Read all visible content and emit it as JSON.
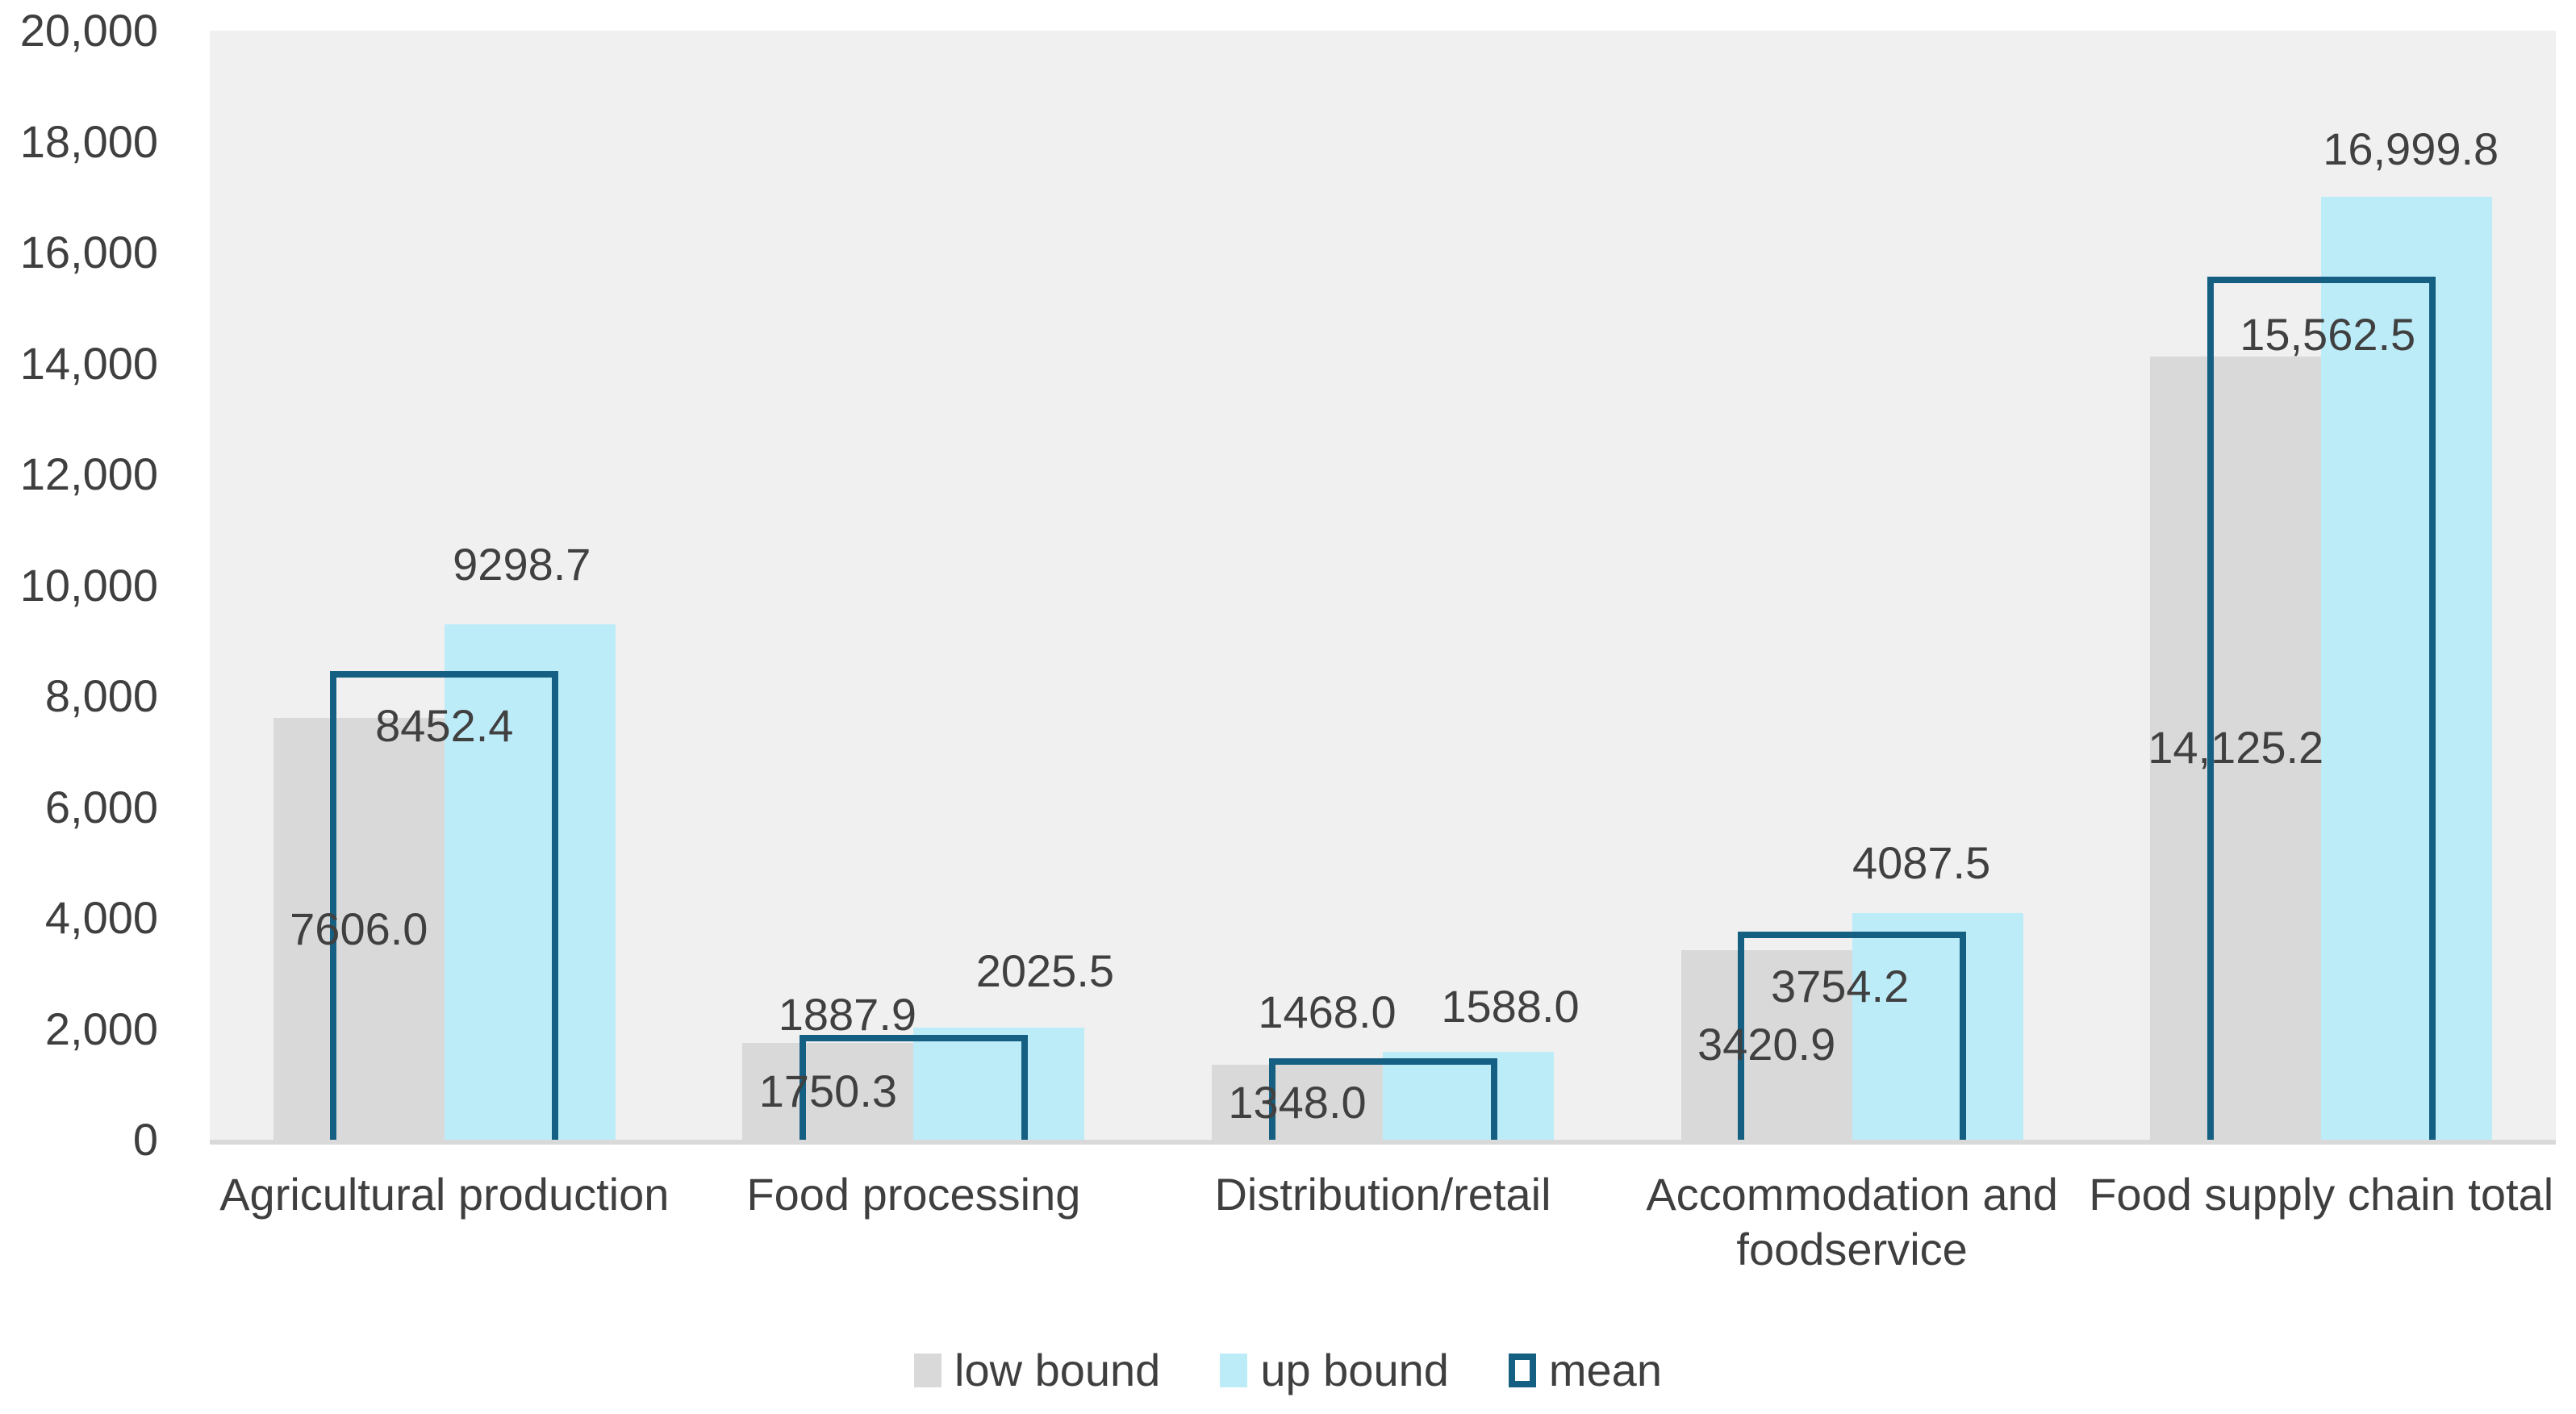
{
  "chart_data": {
    "type": "bar",
    "title": "",
    "xlabel": "",
    "ylabel": "",
    "categories": [
      "Agricultural production",
      "Food processing",
      "Distribution/retail",
      "Accommodation and foodservice",
      "Food supply chain total"
    ],
    "series": [
      {
        "name": "low bound",
        "style": "fill",
        "color": "#d9d9d9",
        "values": [
          7606.0,
          1750.3,
          1348.0,
          3420.9,
          14125.2
        ],
        "labels": [
          "7606.0",
          "1750.3",
          "1348.0",
          "3420.9",
          "14,125.2"
        ]
      },
      {
        "name": "up bound",
        "style": "fill",
        "color": "#bdecf9",
        "values": [
          9298.7,
          2025.5,
          1588.0,
          4087.5,
          16999.8
        ],
        "labels": [
          "9298.7",
          "2025.5",
          "1588.0",
          "4087.5",
          "16,999.8"
        ]
      },
      {
        "name": "mean",
        "style": "outline",
        "color": "#156082",
        "values": [
          8452.4,
          1887.9,
          1468.0,
          3754.2,
          15562.5
        ],
        "labels": [
          "8452.4",
          "1887.9",
          "1468.0",
          "3754.2",
          "15,562.5"
        ]
      }
    ],
    "y_axis": {
      "min": 0,
      "max": 20000,
      "step": 2000,
      "tick_labels": [
        "0",
        "2,000",
        "4,000",
        "6,000",
        "8,000",
        "10,000",
        "12,000",
        "14,000",
        "16,000",
        "18,000",
        "20,000"
      ]
    },
    "legend_position": "bottom-center",
    "grid": false,
    "plot_background": "#f0f0f0",
    "baseline_color": "#d9d9d9",
    "text_color": "#3f3f3f",
    "label_offsets": {
      "mean_dx": [
        0,
        -82,
        -69,
        -15,
        8
      ],
      "mean_dy": [
        68,
        -25,
        -57,
        68,
        72
      ],
      "up_dx": [
        -10,
        57,
        52,
        -20,
        5
      ],
      "up_dy": [
        -74,
        -70,
        -56,
        -62,
        -59
      ]
    }
  }
}
